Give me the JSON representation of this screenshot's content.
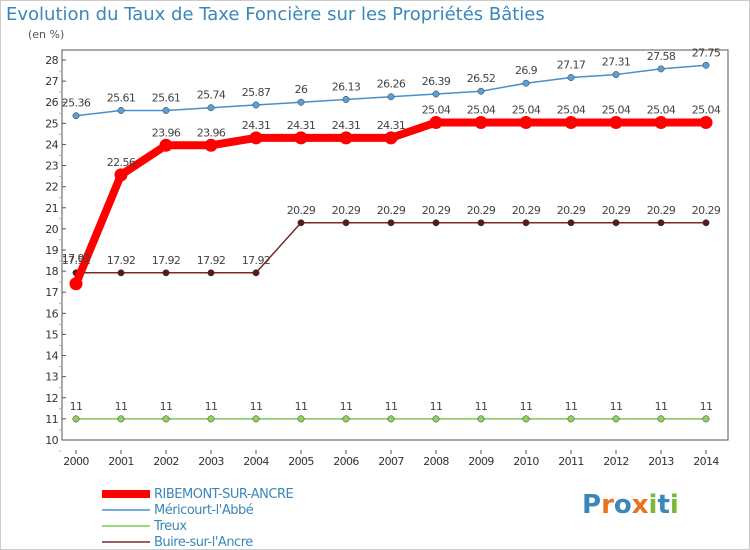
{
  "title": "Evolution du Taux de Taxe Foncière sur les Propriétés Bâties",
  "unit": "(en %)",
  "logo": {
    "letters": [
      "P",
      "r",
      "o",
      "x",
      "i",
      "t",
      "i"
    ],
    "colors": [
      "#3a87b8",
      "#e8731f",
      "#3a87b8",
      "#e8731f",
      "#7ab83a",
      "#3a87b8",
      "#7ab83a"
    ]
  },
  "chart_data": {
    "type": "line",
    "title": "Evolution du Taux de Taxe Foncière sur les Propriétés Bâties",
    "ylabel": "(en %)",
    "ylim": [
      10,
      28
    ],
    "yticks": [
      "10",
      "11",
      "12",
      "13",
      "14",
      "15",
      "16",
      "17",
      "18",
      "19",
      "20",
      "21",
      "22",
      "23",
      "24",
      "25",
      "26",
      "27",
      "28"
    ],
    "x": [
      "2000",
      "2001",
      "2002",
      "2003",
      "2004",
      "2005",
      "2006",
      "2007",
      "2008",
      "2009",
      "2010",
      "2011",
      "2012",
      "2013",
      "2014"
    ],
    "grid": false,
    "legend": "bottom-left",
    "series": [
      {
        "name": "RIBEMONT-SUR-ANCRE",
        "color": "#ff0000",
        "width": 8,
        "values": [
          17.4,
          22.56,
          23.96,
          23.96,
          24.31,
          24.31,
          24.31,
          24.31,
          25.04,
          25.04,
          25.04,
          25.04,
          25.04,
          25.04,
          25.04
        ],
        "labels": [
          "",
          "22.56",
          "23.96",
          "23.96",
          "24.31",
          "24.31",
          "24.31",
          "24.31",
          "25.04",
          "25.04",
          "25.04",
          "25.04",
          "25.04",
          "25.04",
          "25.04"
        ]
      },
      {
        "name": "Méricourt-l'Abbé",
        "color": "#4a90c8",
        "width": 1.5,
        "values": [
          25.36,
          25.61,
          25.61,
          25.74,
          25.87,
          26,
          26.13,
          26.26,
          26.39,
          26.52,
          26.9,
          27.17,
          27.31,
          27.58,
          27.75
        ],
        "labels": [
          "25.36",
          "25.61",
          "25.61",
          "25.74",
          "25.87",
          "26",
          "26.13",
          "26.26",
          "26.39",
          "26.52",
          "26.9",
          "27.17",
          "27.31",
          "27.58",
          "27.75"
        ]
      },
      {
        "name": "Treux",
        "color": "#7ec850",
        "width": 1.5,
        "values": [
          11,
          11,
          11,
          11,
          11,
          11,
          11,
          11,
          11,
          11,
          11,
          11,
          11,
          11,
          11
        ],
        "labels": [
          "11",
          "11",
          "11",
          "11",
          "11",
          "11",
          "11",
          "11",
          "11",
          "11",
          "11",
          "11",
          "11",
          "11",
          "11"
        ]
      },
      {
        "name": "Buire-sur-l'Ancre",
        "color": "#7a2a2a",
        "width": 1.5,
        "values": [
          17.92,
          17.92,
          17.92,
          17.92,
          17.92,
          20.29,
          20.29,
          20.29,
          20.29,
          20.29,
          20.29,
          20.29,
          20.29,
          20.29,
          20.29
        ],
        "labels": [
          "17.92",
          "17.92",
          "17.92",
          "17.92",
          "17.92",
          "20.29",
          "20.29",
          "20.29",
          "20.29",
          "20.29",
          "20.29",
          "20.29",
          "20.29",
          "20.29",
          "20.29"
        ]
      }
    ],
    "extra_labels": [
      "17.92"
    ]
  }
}
